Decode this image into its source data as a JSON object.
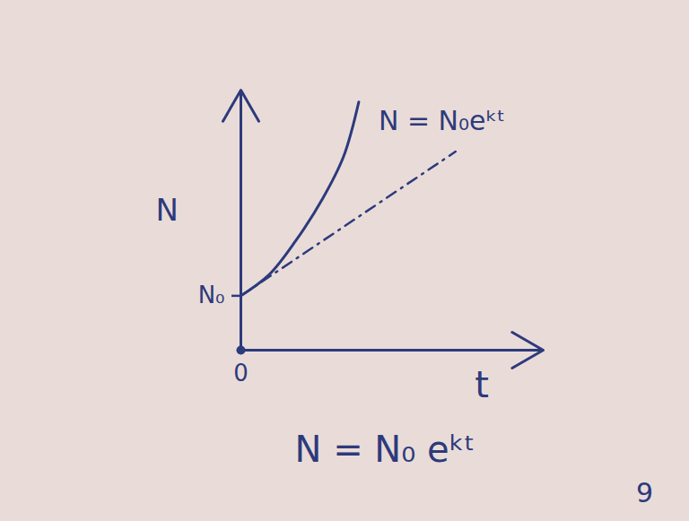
{
  "chart_data": {
    "type": "line",
    "x_label": "t",
    "y_label": "N",
    "xlim": [
      0,
      10
    ],
    "ylim": [
      0,
      11
    ],
    "xticks": [
      0
    ],
    "yticks": [
      {
        "value": 2.3,
        "label": "N₀"
      }
    ],
    "grid": false,
    "color": "#2d3a7c",
    "series": [
      {
        "x": [
          0,
          0.94,
          1.8,
          2.7,
          3.4,
          3.9
        ],
        "values": [
          2.3,
          3.2,
          4.6,
          6.4,
          8.2,
          10.5
        ],
        "line_style": "solid"
      },
      {
        "x": [
          0,
          7.1
        ],
        "values": [
          2.3,
          8.4
        ],
        "line_style": "dashdot"
      }
    ],
    "annotations": [
      "N = N₀eᵏᵗ"
    ],
    "caption": "N = N₀ eᵏᵗ",
    "page": "9"
  }
}
